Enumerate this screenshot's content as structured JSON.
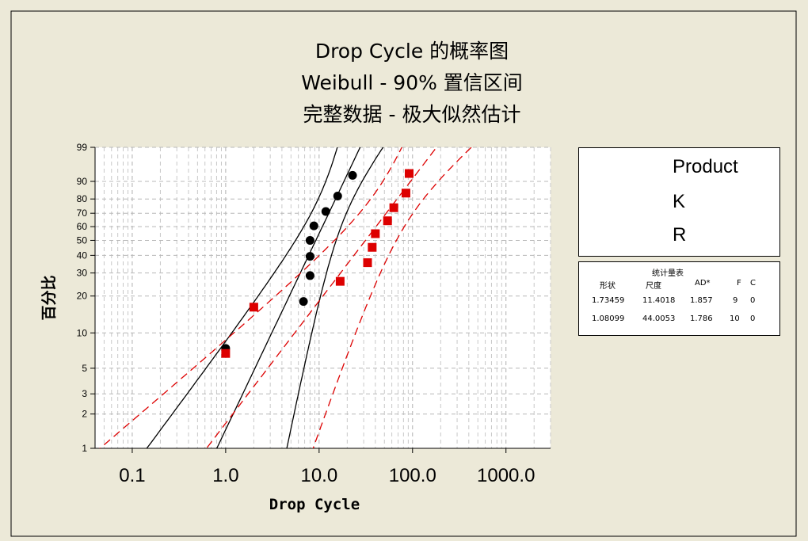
{
  "titles": [
    "Drop Cycle 的概率图",
    "Weibull - 90% 置信区间",
    "完整数据 - 极大似然估计"
  ],
  "legend": {
    "title": "Product",
    "items": [
      {
        "label": "K",
        "color": "#000000",
        "marker": "circle",
        "line": "solid"
      },
      {
        "label": "R",
        "color": "#dd0000",
        "marker": "square",
        "line": "dashed"
      }
    ]
  },
  "stats_table": {
    "caption": "统计量表",
    "headers": [
      "形状",
      "尺度",
      "AD*",
      "F",
      "C"
    ],
    "rows": [
      [
        "1.73459",
        "11.4018",
        "1.857",
        "9",
        "0"
      ],
      [
        "1.08099",
        "44.0053",
        "1.786",
        "10",
        "0"
      ]
    ]
  },
  "chart_data": {
    "type": "scatter",
    "xlabel": "Drop Cycle",
    "ylabel": "百分比",
    "x_scale": "log",
    "y_scale": "weibull-probability",
    "xlim": [
      0.04,
      3000
    ],
    "ylim": [
      1,
      99
    ],
    "x_ticks": [
      {
        "value": 0.1,
        "label": "0.1"
      },
      {
        "value": 1,
        "label": "1.0"
      },
      {
        "value": 10,
        "label": "10.0"
      },
      {
        "value": 100,
        "label": "100.0"
      },
      {
        "value": 1000,
        "label": "1000.0"
      }
    ],
    "y_ticks": [
      1,
      2,
      3,
      5,
      10,
      20,
      30,
      40,
      50,
      60,
      70,
      80,
      90,
      99
    ],
    "grid": true,
    "confidence_level": 90,
    "series": [
      {
        "name": "K",
        "color": "#000000",
        "marker": "circle",
        "line": "solid",
        "shape": 1.73459,
        "scale": 11.4018,
        "points": [
          {
            "x": 1.0,
            "y": 7.4
          },
          {
            "x": 6.8,
            "y": 18.1
          },
          {
            "x": 8.0,
            "y": 28.7
          },
          {
            "x": 8.0,
            "y": 39.4
          },
          {
            "x": 8.0,
            "y": 50.0
          },
          {
            "x": 8.8,
            "y": 60.6
          },
          {
            "x": 11.8,
            "y": 71.3
          },
          {
            "x": 15.8,
            "y": 81.9
          },
          {
            "x": 22.8,
            "y": 92.6
          }
        ]
      },
      {
        "name": "R",
        "color": "#dd0000",
        "marker": "square",
        "line": "dashed",
        "shape": 1.08099,
        "scale": 44.0053,
        "points": [
          {
            "x": 1.0,
            "y": 6.7
          },
          {
            "x": 2.0,
            "y": 16.3
          },
          {
            "x": 16.8,
            "y": 26.0
          },
          {
            "x": 33.0,
            "y": 35.6
          },
          {
            "x": 37.0,
            "y": 45.2
          },
          {
            "x": 40.0,
            "y": 54.8
          },
          {
            "x": 54.0,
            "y": 64.4
          },
          {
            "x": 63.0,
            "y": 74.0
          },
          {
            "x": 85.0,
            "y": 83.7
          },
          {
            "x": 92.0,
            "y": 93.3
          }
        ]
      }
    ]
  }
}
